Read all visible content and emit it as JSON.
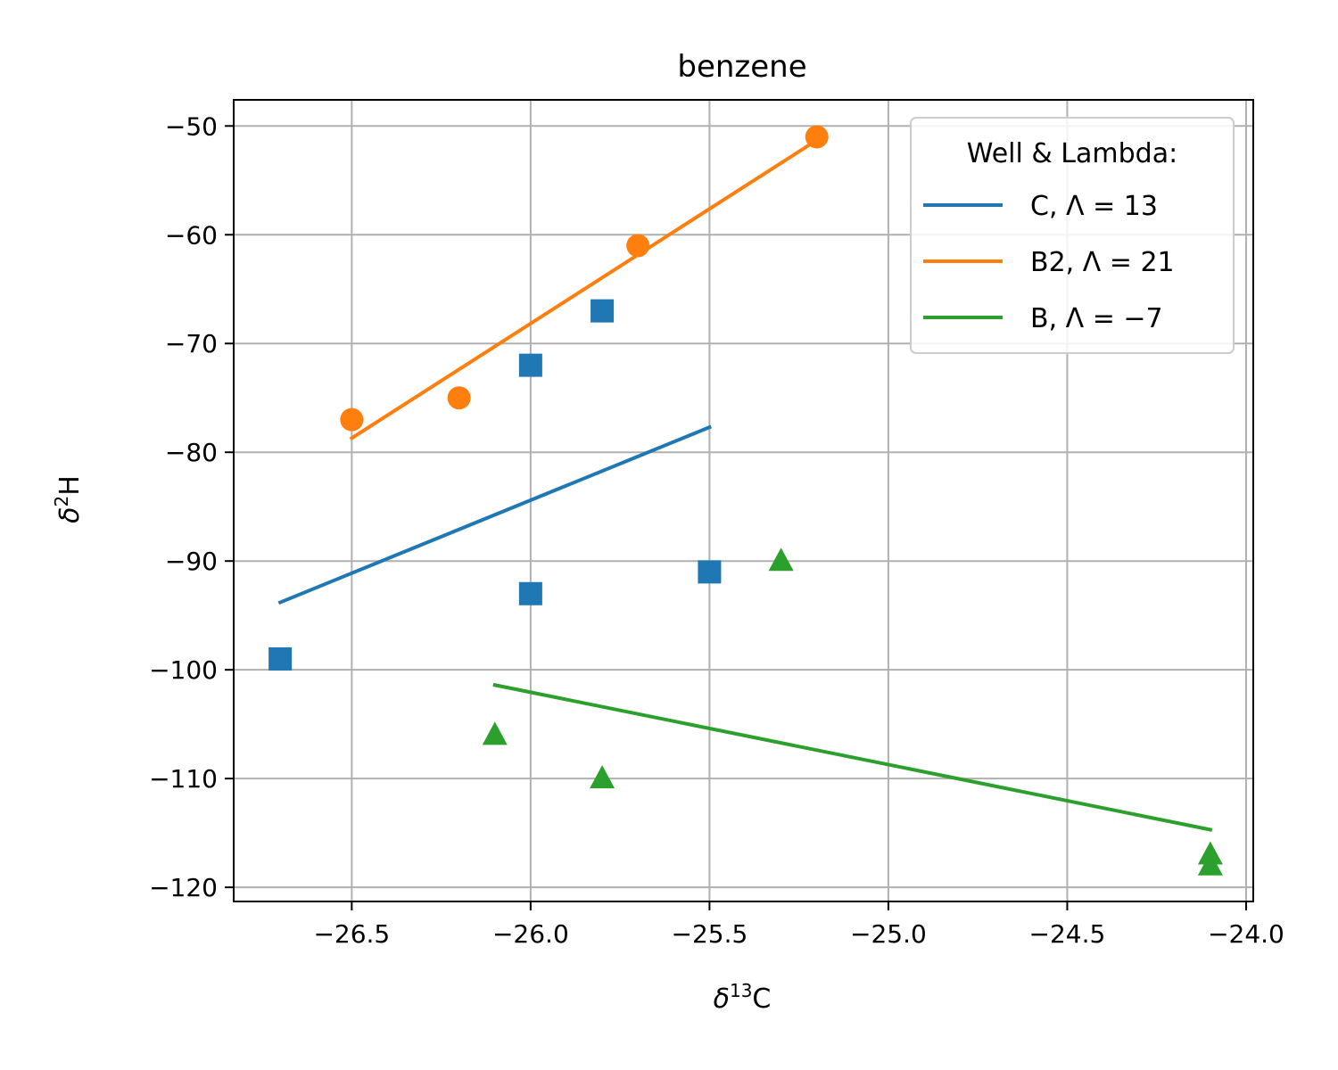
{
  "chart_data": {
    "type": "scatter",
    "title": "benzene",
    "xlabel": {
      "base": "δ",
      "sup": "13",
      "rest": "C"
    },
    "ylabel": {
      "base": "δ",
      "sup": "2",
      "rest": "H"
    },
    "xlim": [
      -26.83,
      -23.98
    ],
    "ylim": [
      -121.3,
      -47.6
    ],
    "x_ticks": [
      -26.5,
      -26.0,
      -25.5,
      -25.0,
      -24.5,
      -24.0
    ],
    "x_tick_labels": [
      "−26.5",
      "−26.0",
      "−25.5",
      "−25.0",
      "−24.5",
      "−24.0"
    ],
    "y_ticks": [
      -50,
      -60,
      -70,
      -80,
      -90,
      -100,
      -110,
      -120
    ],
    "y_tick_labels": [
      "−50",
      "−60",
      "−70",
      "−80",
      "−90",
      "−100",
      "−110",
      "−120"
    ],
    "grid": true,
    "legend": {
      "title": "Well & Lambda:",
      "placement": "top-right",
      "entries": [
        "C, Λ = 13",
        "B2, Λ = 21",
        "B, Λ = −7"
      ]
    },
    "series": [
      {
        "name": "C, Λ = 13",
        "color": "#1f77b4",
        "marker": "square",
        "points": [
          {
            "x": -26.7,
            "y": -99
          },
          {
            "x": -26.0,
            "y": -72
          },
          {
            "x": -26.0,
            "y": -93
          },
          {
            "x": -25.8,
            "y": -67
          },
          {
            "x": -25.5,
            "y": -91
          }
        ],
        "fit_line": [
          {
            "x": -26.7,
            "y": -93.8
          },
          {
            "x": -25.5,
            "y": -77.7
          }
        ]
      },
      {
        "name": "B2, Λ = 21",
        "color": "#ff7f0e",
        "marker": "circle",
        "points": [
          {
            "x": -26.5,
            "y": -77
          },
          {
            "x": -26.2,
            "y": -75
          },
          {
            "x": -25.7,
            "y": -61
          },
          {
            "x": -25.2,
            "y": -51
          }
        ],
        "fit_line": [
          {
            "x": -26.5,
            "y": -78.7
          },
          {
            "x": -25.2,
            "y": -51.3
          }
        ]
      },
      {
        "name": "B, Λ = −7",
        "color": "#2ca02c",
        "marker": "triangle",
        "points": [
          {
            "x": -26.1,
            "y": -106
          },
          {
            "x": -25.8,
            "y": -110
          },
          {
            "x": -25.3,
            "y": -90
          },
          {
            "x": -24.1,
            "y": -117
          },
          {
            "x": -24.1,
            "y": -118
          }
        ],
        "fit_line": [
          {
            "x": -26.1,
            "y": -101.4
          },
          {
            "x": -24.1,
            "y": -114.7
          }
        ]
      }
    ]
  }
}
